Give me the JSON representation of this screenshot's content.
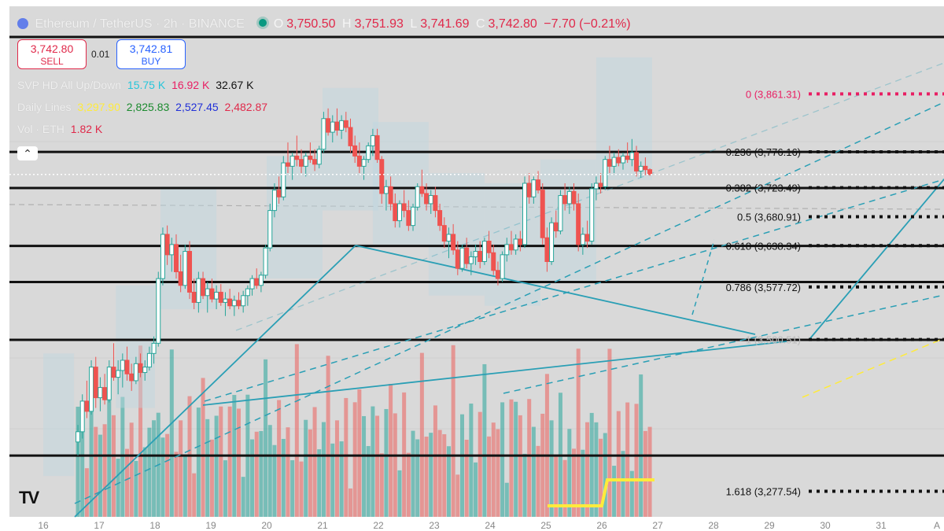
{
  "header": {
    "title": "Ethereum / TetherUS · 2h · BINANCE",
    "o_key": "O",
    "o_val": "3,750.50",
    "h_key": "H",
    "h_val": "3,751.93",
    "l_key": "L",
    "l_val": "3,741.69",
    "c_key": "C",
    "c_val": "3,742.80",
    "change": "−7.70 (−0.21%)"
  },
  "trade": {
    "sell_price": "3,742.80",
    "sell_label": "SELL",
    "spread": "0.01",
    "buy_price": "3,742.81",
    "buy_label": "BUY"
  },
  "indicators": {
    "svp": {
      "name": "SVP HD All Up/Down",
      "up": "15.75 K",
      "down": "16.92 K",
      "total": "32.67 K"
    },
    "daily": {
      "name": "Daily Lines",
      "v1": "3,297.90",
      "v2": "2,825.83",
      "v3": "2,527.45",
      "v4": "2,482.87"
    },
    "vol": {
      "name": "Vol · ETH",
      "value": "1.82 K"
    }
  },
  "ui": {
    "collapse_icon": "chevron-up-icon",
    "logo": "TV"
  },
  "colors": {
    "background": "#d9d9d9",
    "up": "#26a69a",
    "down": "#ef5350",
    "trendline": "#2a9fb5",
    "fib_zero": "#e91e63",
    "yellow": "#ffeb3b",
    "blue_text": "#2962ff",
    "red_text": "#e0294a"
  },
  "chart_data": {
    "type": "candlestick",
    "symbol": "Ethereum / TetherUS",
    "interval": "2h",
    "exchange": "BINANCE",
    "x_ticks": [
      "16",
      "17",
      "18",
      "19",
      "20",
      "21",
      "22",
      "23",
      "24",
      "25",
      "26",
      "27",
      "28",
      "29",
      "30",
      "31",
      "A"
    ],
    "y_range": [
      3240,
      3990
    ],
    "fib_levels": [
      {
        "ratio": "0",
        "price": 3861.31,
        "label": "0 (3,861.31)"
      },
      {
        "ratio": "0.236",
        "price": 3776.16,
        "label": "0.236 (3,776.16)"
      },
      {
        "ratio": "0.382",
        "price": 3723.49,
        "label": "0.382 (3,723.49)"
      },
      {
        "ratio": "0.5",
        "price": 3680.91,
        "label": "0.5 (3,680.91)"
      },
      {
        "ratio": "0.618",
        "price": 3638.34,
        "label": "0.618 (3,638.34)"
      },
      {
        "ratio": "0.786",
        "price": 3577.72,
        "label": "0.786 (3,577.72)"
      },
      {
        "ratio": "1",
        "price": 3500.51,
        "label": "1 (3,500.51)"
      },
      {
        "ratio": "1.618",
        "price": 3277.54,
        "label": "1.618 (3,277.54)"
      }
    ],
    "horizontal_levels": [
      3945,
      3776,
      3723,
      3638,
      3585,
      3500,
      3330
    ],
    "candles": [
      {
        "x": 16.62,
        "o": 3350,
        "h": 3375,
        "l": 3330,
        "c": 3365
      },
      {
        "x": 16.7,
        "o": 3365,
        "h": 3420,
        "l": 3355,
        "c": 3410
      },
      {
        "x": 16.78,
        "o": 3410,
        "h": 3440,
        "l": 3385,
        "c": 3395
      },
      {
        "x": 16.86,
        "o": 3395,
        "h": 3470,
        "l": 3390,
        "c": 3460
      },
      {
        "x": 16.94,
        "o": 3460,
        "h": 3475,
        "l": 3400,
        "c": 3415
      },
      {
        "x": 17.02,
        "o": 3415,
        "h": 3445,
        "l": 3395,
        "c": 3430
      },
      {
        "x": 17.1,
        "o": 3430,
        "h": 3450,
        "l": 3405,
        "c": 3412
      },
      {
        "x": 17.18,
        "o": 3412,
        "h": 3470,
        "l": 3408,
        "c": 3460
      },
      {
        "x": 17.26,
        "o": 3460,
        "h": 3495,
        "l": 3440,
        "c": 3445
      },
      {
        "x": 17.34,
        "o": 3445,
        "h": 3470,
        "l": 3420,
        "c": 3455
      },
      {
        "x": 17.42,
        "o": 3455,
        "h": 3480,
        "l": 3430,
        "c": 3470
      },
      {
        "x": 17.5,
        "o": 3470,
        "h": 3490,
        "l": 3440,
        "c": 3450
      },
      {
        "x": 17.58,
        "o": 3450,
        "h": 3465,
        "l": 3425,
        "c": 3440
      },
      {
        "x": 17.66,
        "o": 3440,
        "h": 3475,
        "l": 3435,
        "c": 3465
      },
      {
        "x": 17.74,
        "o": 3465,
        "h": 3480,
        "l": 3445,
        "c": 3452
      },
      {
        "x": 17.82,
        "o": 3452,
        "h": 3470,
        "l": 3440,
        "c": 3460
      },
      {
        "x": 17.9,
        "o": 3460,
        "h": 3490,
        "l": 3455,
        "c": 3480
      },
      {
        "x": 17.98,
        "o": 3480,
        "h": 3505,
        "l": 3465,
        "c": 3495
      },
      {
        "x": 18.06,
        "o": 3495,
        "h": 3600,
        "l": 3490,
        "c": 3590
      },
      {
        "x": 18.14,
        "o": 3590,
        "h": 3665,
        "l": 3580,
        "c": 3655
      },
      {
        "x": 18.22,
        "o": 3655,
        "h": 3668,
        "l": 3610,
        "c": 3625
      },
      {
        "x": 18.3,
        "o": 3625,
        "h": 3650,
        "l": 3600,
        "c": 3640
      },
      {
        "x": 18.38,
        "o": 3640,
        "h": 3655,
        "l": 3590,
        "c": 3600
      },
      {
        "x": 18.46,
        "o": 3600,
        "h": 3625,
        "l": 3570,
        "c": 3580
      },
      {
        "x": 18.54,
        "o": 3580,
        "h": 3640,
        "l": 3575,
        "c": 3630
      },
      {
        "x": 18.62,
        "o": 3630,
        "h": 3645,
        "l": 3560,
        "c": 3570
      },
      {
        "x": 18.7,
        "o": 3570,
        "h": 3590,
        "l": 3545,
        "c": 3555
      },
      {
        "x": 18.78,
        "o": 3555,
        "h": 3600,
        "l": 3540,
        "c": 3590
      },
      {
        "x": 18.86,
        "o": 3590,
        "h": 3600,
        "l": 3560,
        "c": 3565
      },
      {
        "x": 18.94,
        "o": 3565,
        "h": 3585,
        "l": 3540,
        "c": 3575
      },
      {
        "x": 19.02,
        "o": 3575,
        "h": 3590,
        "l": 3555,
        "c": 3560
      },
      {
        "x": 19.1,
        "o": 3560,
        "h": 3580,
        "l": 3545,
        "c": 3570
      },
      {
        "x": 19.18,
        "o": 3570,
        "h": 3582,
        "l": 3550,
        "c": 3555
      },
      {
        "x": 19.26,
        "o": 3555,
        "h": 3570,
        "l": 3535,
        "c": 3560
      },
      {
        "x": 19.34,
        "o": 3560,
        "h": 3575,
        "l": 3545,
        "c": 3550
      },
      {
        "x": 19.42,
        "o": 3550,
        "h": 3565,
        "l": 3535,
        "c": 3558
      },
      {
        "x": 19.5,
        "o": 3558,
        "h": 3570,
        "l": 3545,
        "c": 3550
      },
      {
        "x": 19.58,
        "o": 3550,
        "h": 3572,
        "l": 3540,
        "c": 3565
      },
      {
        "x": 19.66,
        "o": 3565,
        "h": 3580,
        "l": 3550,
        "c": 3575
      },
      {
        "x": 19.74,
        "o": 3575,
        "h": 3595,
        "l": 3565,
        "c": 3590
      },
      {
        "x": 19.82,
        "o": 3590,
        "h": 3605,
        "l": 3575,
        "c": 3580
      },
      {
        "x": 19.9,
        "o": 3580,
        "h": 3600,
        "l": 3570,
        "c": 3595
      },
      {
        "x": 19.98,
        "o": 3595,
        "h": 3640,
        "l": 3590,
        "c": 3635
      },
      {
        "x": 20.06,
        "o": 3635,
        "h": 3700,
        "l": 3630,
        "c": 3690
      },
      {
        "x": 20.14,
        "o": 3690,
        "h": 3730,
        "l": 3680,
        "c": 3720
      },
      {
        "x": 20.22,
        "o": 3720,
        "h": 3740,
        "l": 3700,
        "c": 3710
      },
      {
        "x": 20.3,
        "o": 3710,
        "h": 3770,
        "l": 3705,
        "c": 3760
      },
      {
        "x": 20.38,
        "o": 3760,
        "h": 3790,
        "l": 3745,
        "c": 3755
      },
      {
        "x": 20.46,
        "o": 3755,
        "h": 3775,
        "l": 3735,
        "c": 3770
      },
      {
        "x": 20.54,
        "o": 3770,
        "h": 3800,
        "l": 3755,
        "c": 3765
      },
      {
        "x": 20.62,
        "o": 3765,
        "h": 3780,
        "l": 3745,
        "c": 3755
      },
      {
        "x": 20.7,
        "o": 3755,
        "h": 3775,
        "l": 3740,
        "c": 3770
      },
      {
        "x": 20.78,
        "o": 3770,
        "h": 3790,
        "l": 3760,
        "c": 3765
      },
      {
        "x": 20.86,
        "o": 3765,
        "h": 3780,
        "l": 3748,
        "c": 3758
      },
      {
        "x": 20.94,
        "o": 3758,
        "h": 3785,
        "l": 3752,
        "c": 3780
      },
      {
        "x": 21.02,
        "o": 3780,
        "h": 3835,
        "l": 3775,
        "c": 3825
      },
      {
        "x": 21.1,
        "o": 3825,
        "h": 3840,
        "l": 3800,
        "c": 3805
      },
      {
        "x": 21.18,
        "o": 3805,
        "h": 3830,
        "l": 3790,
        "c": 3820
      },
      {
        "x": 21.26,
        "o": 3820,
        "h": 3840,
        "l": 3800,
        "c": 3808
      },
      {
        "x": 21.34,
        "o": 3808,
        "h": 3830,
        "l": 3795,
        "c": 3822
      },
      {
        "x": 21.42,
        "o": 3822,
        "h": 3835,
        "l": 3805,
        "c": 3812
      },
      {
        "x": 21.5,
        "o": 3812,
        "h": 3825,
        "l": 3775,
        "c": 3785
      },
      {
        "x": 21.58,
        "o": 3785,
        "h": 3800,
        "l": 3760,
        "c": 3770
      },
      {
        "x": 21.66,
        "o": 3770,
        "h": 3790,
        "l": 3745,
        "c": 3755
      },
      {
        "x": 21.74,
        "o": 3755,
        "h": 3770,
        "l": 3735,
        "c": 3765
      },
      {
        "x": 21.82,
        "o": 3765,
        "h": 3790,
        "l": 3760,
        "c": 3785
      },
      {
        "x": 21.9,
        "o": 3785,
        "h": 3810,
        "l": 3770,
        "c": 3800
      },
      {
        "x": 21.98,
        "o": 3800,
        "h": 3810,
        "l": 3760,
        "c": 3765
      },
      {
        "x": 22.06,
        "o": 3765,
        "h": 3770,
        "l": 3700,
        "c": 3715
      },
      {
        "x": 22.14,
        "o": 3715,
        "h": 3735,
        "l": 3690,
        "c": 3725
      },
      {
        "x": 22.22,
        "o": 3725,
        "h": 3740,
        "l": 3690,
        "c": 3700
      },
      {
        "x": 22.3,
        "o": 3700,
        "h": 3715,
        "l": 3665,
        "c": 3675
      },
      {
        "x": 22.38,
        "o": 3675,
        "h": 3705,
        "l": 3665,
        "c": 3700
      },
      {
        "x": 22.46,
        "o": 3700,
        "h": 3720,
        "l": 3680,
        "c": 3690
      },
      {
        "x": 22.54,
        "o": 3690,
        "h": 3705,
        "l": 3660,
        "c": 3668
      },
      {
        "x": 22.62,
        "o": 3668,
        "h": 3700,
        "l": 3660,
        "c": 3695
      },
      {
        "x": 22.7,
        "o": 3695,
        "h": 3730,
        "l": 3690,
        "c": 3725
      },
      {
        "x": 22.78,
        "o": 3725,
        "h": 3750,
        "l": 3710,
        "c": 3715
      },
      {
        "x": 22.86,
        "o": 3715,
        "h": 3730,
        "l": 3690,
        "c": 3700
      },
      {
        "x": 22.94,
        "o": 3700,
        "h": 3720,
        "l": 3685,
        "c": 3712
      },
      {
        "x": 23.02,
        "o": 3712,
        "h": 3725,
        "l": 3680,
        "c": 3690
      },
      {
        "x": 23.1,
        "o": 3690,
        "h": 3700,
        "l": 3660,
        "c": 3668
      },
      {
        "x": 23.18,
        "o": 3668,
        "h": 3680,
        "l": 3635,
        "c": 3645
      },
      {
        "x": 23.26,
        "o": 3645,
        "h": 3665,
        "l": 3620,
        "c": 3655
      },
      {
        "x": 23.34,
        "o": 3655,
        "h": 3670,
        "l": 3625,
        "c": 3632
      },
      {
        "x": 23.42,
        "o": 3632,
        "h": 3645,
        "l": 3595,
        "c": 3605
      },
      {
        "x": 23.5,
        "o": 3605,
        "h": 3640,
        "l": 3600,
        "c": 3635
      },
      {
        "x": 23.58,
        "o": 3635,
        "h": 3650,
        "l": 3605,
        "c": 3612
      },
      {
        "x": 23.66,
        "o": 3612,
        "h": 3630,
        "l": 3595,
        "c": 3622
      },
      {
        "x": 23.74,
        "o": 3622,
        "h": 3640,
        "l": 3610,
        "c": 3630
      },
      {
        "x": 23.82,
        "o": 3630,
        "h": 3645,
        "l": 3605,
        "c": 3615
      },
      {
        "x": 23.9,
        "o": 3615,
        "h": 3650,
        "l": 3610,
        "c": 3645
      },
      {
        "x": 23.98,
        "o": 3645,
        "h": 3660,
        "l": 3620,
        "c": 3628
      },
      {
        "x": 24.06,
        "o": 3628,
        "h": 3640,
        "l": 3595,
        "c": 3602
      },
      {
        "x": 24.14,
        "o": 3602,
        "h": 3615,
        "l": 3580,
        "c": 3590
      },
      {
        "x": 24.22,
        "o": 3590,
        "h": 3630,
        "l": 3585,
        "c": 3625
      },
      {
        "x": 24.3,
        "o": 3625,
        "h": 3650,
        "l": 3615,
        "c": 3640
      },
      {
        "x": 24.38,
        "o": 3640,
        "h": 3660,
        "l": 3625,
        "c": 3632
      },
      {
        "x": 24.46,
        "o": 3632,
        "h": 3655,
        "l": 3625,
        "c": 3648
      },
      {
        "x": 24.54,
        "o": 3648,
        "h": 3660,
        "l": 3630,
        "c": 3640
      },
      {
        "x": 24.62,
        "o": 3640,
        "h": 3740,
        "l": 3635,
        "c": 3730
      },
      {
        "x": 24.7,
        "o": 3730,
        "h": 3745,
        "l": 3700,
        "c": 3710
      },
      {
        "x": 24.78,
        "o": 3710,
        "h": 3740,
        "l": 3700,
        "c": 3735
      },
      {
        "x": 24.86,
        "o": 3735,
        "h": 3748,
        "l": 3715,
        "c": 3720
      },
      {
        "x": 24.94,
        "o": 3720,
        "h": 3730,
        "l": 3640,
        "c": 3650
      },
      {
        "x": 25.02,
        "o": 3650,
        "h": 3665,
        "l": 3600,
        "c": 3615
      },
      {
        "x": 25.1,
        "o": 3615,
        "h": 3680,
        "l": 3610,
        "c": 3672
      },
      {
        "x": 25.18,
        "o": 3672,
        "h": 3690,
        "l": 3650,
        "c": 3660
      },
      {
        "x": 25.26,
        "o": 3660,
        "h": 3720,
        "l": 3655,
        "c": 3712
      },
      {
        "x": 25.34,
        "o": 3712,
        "h": 3730,
        "l": 3690,
        "c": 3700
      },
      {
        "x": 25.42,
        "o": 3700,
        "h": 3725,
        "l": 3685,
        "c": 3718
      },
      {
        "x": 25.5,
        "o": 3718,
        "h": 3730,
        "l": 3690,
        "c": 3700
      },
      {
        "x": 25.58,
        "o": 3700,
        "h": 3715,
        "l": 3630,
        "c": 3640
      },
      {
        "x": 25.66,
        "o": 3640,
        "h": 3665,
        "l": 3625,
        "c": 3655
      },
      {
        "x": 25.74,
        "o": 3655,
        "h": 3675,
        "l": 3635,
        "c": 3645
      },
      {
        "x": 25.82,
        "o": 3645,
        "h": 3730,
        "l": 3640,
        "c": 3722
      },
      {
        "x": 25.9,
        "o": 3722,
        "h": 3740,
        "l": 3705,
        "c": 3730
      },
      {
        "x": 25.98,
        "o": 3730,
        "h": 3745,
        "l": 3715,
        "c": 3725
      },
      {
        "x": 26.06,
        "o": 3725,
        "h": 3770,
        "l": 3720,
        "c": 3765
      },
      {
        "x": 26.14,
        "o": 3765,
        "h": 3785,
        "l": 3745,
        "c": 3755
      },
      {
        "x": 26.22,
        "o": 3755,
        "h": 3775,
        "l": 3745,
        "c": 3768
      },
      {
        "x": 26.3,
        "o": 3768,
        "h": 3780,
        "l": 3755,
        "c": 3760
      },
      {
        "x": 26.38,
        "o": 3760,
        "h": 3775,
        "l": 3750,
        "c": 3770
      },
      {
        "x": 26.46,
        "o": 3770,
        "h": 3790,
        "l": 3760,
        "c": 3765
      },
      {
        "x": 26.54,
        "o": 3765,
        "h": 3795,
        "l": 3755,
        "c": 3775
      },
      {
        "x": 26.62,
        "o": 3775,
        "h": 3785,
        "l": 3740,
        "c": 3748
      },
      {
        "x": 26.7,
        "o": 3748,
        "h": 3762,
        "l": 3738,
        "c": 3755
      },
      {
        "x": 26.78,
        "o": 3755,
        "h": 3768,
        "l": 3742,
        "c": 3750
      },
      {
        "x": 26.86,
        "o": 3750,
        "h": 3752,
        "l": 3741,
        "c": 3743
      }
    ]
  }
}
